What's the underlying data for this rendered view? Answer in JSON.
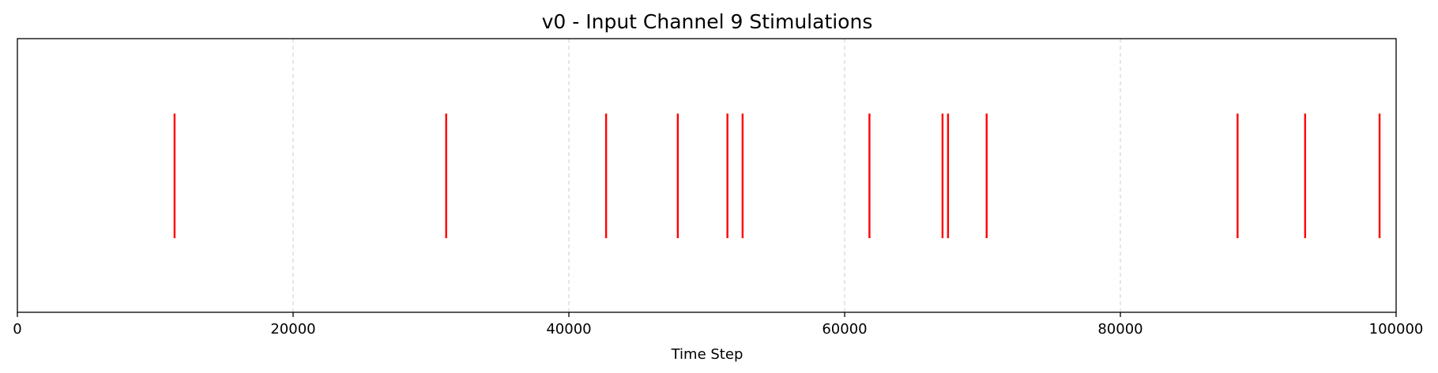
{
  "chart_data": {
    "type": "event",
    "title": "v0 - Input Channel 9 Stimulations",
    "xlabel": "Time Step",
    "ylabel": "",
    "xlim": [
      0,
      100000
    ],
    "xticks": [
      0,
      20000,
      40000,
      60000,
      80000,
      100000
    ],
    "grid": "x-dashed",
    "series": [
      {
        "color": "#ff0000",
        "events": [
          11400,
          31100,
          42700,
          47900,
          51500,
          52600,
          61800,
          67100,
          67500,
          70300,
          88500,
          93400,
          98800
        ]
      }
    ]
  }
}
